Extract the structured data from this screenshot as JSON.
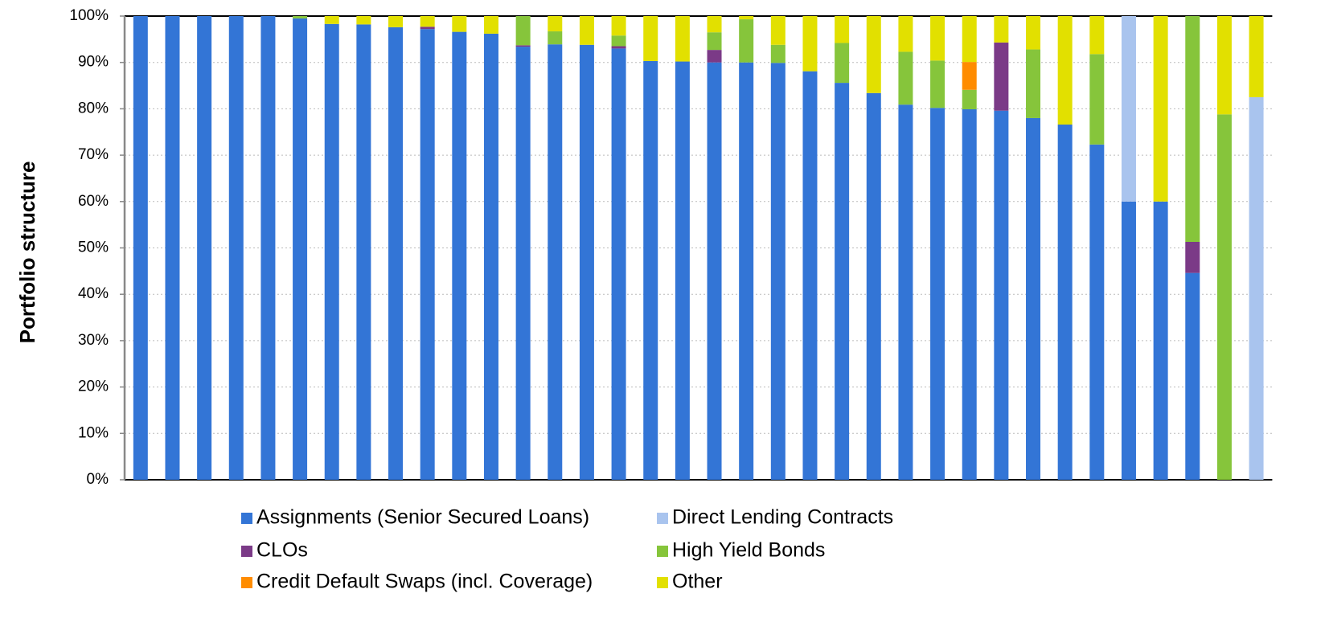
{
  "chart_data": {
    "type": "stacked_bar",
    "y_label": "Portfolio structure",
    "categories": [
      null,
      null,
      null,
      null,
      null,
      null,
      null,
      null,
      null,
      null,
      null,
      null,
      null,
      null,
      null,
      null,
      null,
      null,
      null,
      null,
      null,
      null,
      null,
      null,
      null,
      null,
      null,
      null,
      null,
      null,
      null,
      null,
      null,
      null,
      null,
      null
    ],
    "ylim": [
      0,
      100
    ],
    "yticks": [
      {
        "value": 0,
        "label": "0%"
      },
      {
        "value": 10,
        "label": "10%"
      },
      {
        "value": 20,
        "label": "20%"
      },
      {
        "value": 30,
        "label": "30%"
      },
      {
        "value": 40,
        "label": "40%"
      },
      {
        "value": 50,
        "label": "50%"
      },
      {
        "value": 60,
        "label": "60%"
      },
      {
        "value": 70,
        "label": "70%"
      },
      {
        "value": 80,
        "label": "80%"
      },
      {
        "value": 90,
        "label": "90%"
      },
      {
        "value": 100,
        "label": "100%"
      }
    ],
    "grid": true,
    "legend": "bottom",
    "series": [
      {
        "name": "Assignments (Senior Secured Loans)",
        "color": "#3375d6",
        "values": [
          100,
          100,
          100,
          100,
          100,
          99.5,
          98.3,
          98.2,
          97.6,
          97.2,
          96.6,
          96.2,
          93.4,
          93.9,
          93.8,
          93.0,
          90.3,
          90.2,
          90.0,
          90.0,
          89.9,
          88.1,
          85.6,
          83.4,
          80.9,
          80.2,
          79.9,
          79.6,
          78.0,
          76.6,
          72.3,
          60,
          60,
          44.6,
          0,
          0
        ]
      },
      {
        "name": "Direct Lending Contracts",
        "color": "#a9c4ee",
        "values": [
          0,
          0,
          0,
          0,
          0,
          0,
          0,
          0,
          0,
          0,
          0,
          0,
          0,
          0,
          0,
          0,
          0,
          0,
          0,
          0,
          0,
          0,
          0,
          0,
          0,
          0,
          0,
          0,
          0,
          0,
          0,
          40,
          0,
          0,
          0,
          82.5
        ]
      },
      {
        "name": "CLOs",
        "color": "#7b3a87",
        "values": [
          0,
          0,
          0,
          0,
          0,
          0,
          0,
          0,
          0,
          0.5,
          0,
          0,
          0.3,
          0,
          0,
          0.5,
          0,
          0,
          2.7,
          0,
          0,
          0,
          0,
          0,
          0,
          0,
          0,
          14.7,
          0,
          0,
          0,
          0,
          0,
          6.7,
          0,
          0
        ]
      },
      {
        "name": "High Yield Bonds",
        "color": "#86c53b",
        "values": [
          0,
          0,
          0,
          0,
          0,
          0.5,
          0,
          0,
          0,
          0,
          0,
          0,
          6.3,
          2.8,
          0,
          2.3,
          0,
          0,
          3.8,
          9.3,
          3.9,
          0,
          8.6,
          0,
          11.4,
          10.2,
          4.2,
          0,
          14.8,
          0,
          19.5,
          0,
          0,
          48.7,
          78.8,
          0
        ]
      },
      {
        "name": "Credit Default Swaps (incl. Coverage)",
        "color": "#ff8c00",
        "values": [
          0,
          0,
          0,
          0,
          0,
          0,
          0,
          0,
          0,
          0,
          0,
          0,
          0,
          0,
          0,
          0,
          0,
          0,
          0,
          0,
          0,
          0,
          0,
          0,
          0,
          0,
          6.0,
          0,
          0,
          0,
          0,
          0,
          0,
          0,
          0,
          0
        ]
      },
      {
        "name": "Other",
        "color": "#e2e000",
        "values": [
          0,
          0,
          0,
          0,
          0,
          0,
          1.7,
          1.8,
          2.4,
          2.3,
          3.4,
          3.8,
          0,
          3.3,
          6.2,
          4.2,
          9.7,
          9.8,
          3.5,
          0.7,
          6.2,
          11.9,
          5.8,
          16.6,
          7.7,
          9.6,
          9.9,
          5.7,
          7.2,
          23.4,
          8.2,
          0,
          40,
          0,
          21.2,
          17.5
        ]
      }
    ]
  }
}
